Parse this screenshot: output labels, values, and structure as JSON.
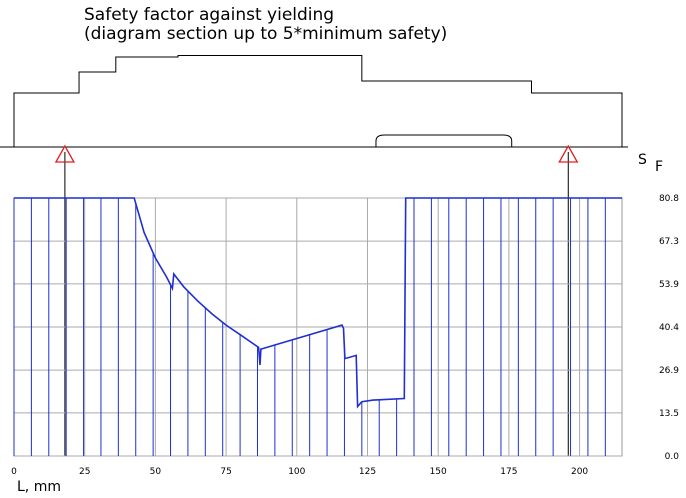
{
  "title": "Safety factor against yielding",
  "subtitle": "(diagram section up to 5*minimum safety)",
  "chart_data": {
    "type": "line",
    "xlabel": "L, mm",
    "ylabel_main": "S",
    "ylabel_sub": "F",
    "xlim": [
      0,
      215
    ],
    "ylim": [
      0,
      80.8
    ],
    "x_ticks": [
      "0",
      "25",
      "50",
      "75",
      "100",
      "125",
      "150",
      "175",
      "200"
    ],
    "x_tick_values": [
      0,
      25,
      50,
      75,
      100,
      125,
      150,
      175,
      200
    ],
    "y_ticks": [
      "0.0",
      "13.5",
      "26.9",
      "40.4",
      "53.9",
      "67.3",
      "80.8"
    ],
    "y_tick_values": [
      0,
      13.5,
      26.9,
      40.4,
      53.9,
      67.3,
      80.8
    ],
    "grid": true,
    "series": [
      {
        "color": "#1f2fd0",
        "x": [
          0,
          42.5,
          46,
          50,
          54,
          56,
          56.5,
          60,
          65,
          70,
          75,
          80,
          86.5,
          87,
          87.3,
          87.5,
          116,
          116.5,
          117,
          121,
          121.5,
          123,
          127,
          138,
          138.5,
          139,
          215
        ],
        "y": [
          80.8,
          80.8,
          70,
          62,
          56,
          52.5,
          57,
          53,
          48.5,
          44.5,
          41,
          38,
          34,
          28.5,
          33.5,
          33.5,
          41,
          40,
          30.5,
          31.5,
          15.5,
          17,
          17.5,
          18,
          80.8,
          80.8,
          80.8
        ]
      }
    ],
    "supports_x": [
      18,
      196
    ],
    "support_color": "#e02020",
    "shaft_profile": [
      {
        "x0": 0,
        "x1": 23,
        "height": 18
      },
      {
        "x0": 23,
        "x1": 24.5,
        "height": 25
      },
      {
        "x0": 24.5,
        "x1": 36,
        "height": 25
      },
      {
        "x0": 36,
        "x1": 58,
        "height": 30
      },
      {
        "x0": 58,
        "x1": 123,
        "height": 30.5
      },
      {
        "x0": 123,
        "x1": 125,
        "height": 22
      },
      {
        "x0": 125,
        "x1": 183,
        "height": 22
      },
      {
        "x0": 183,
        "x1": 215,
        "height": 18
      }
    ]
  }
}
